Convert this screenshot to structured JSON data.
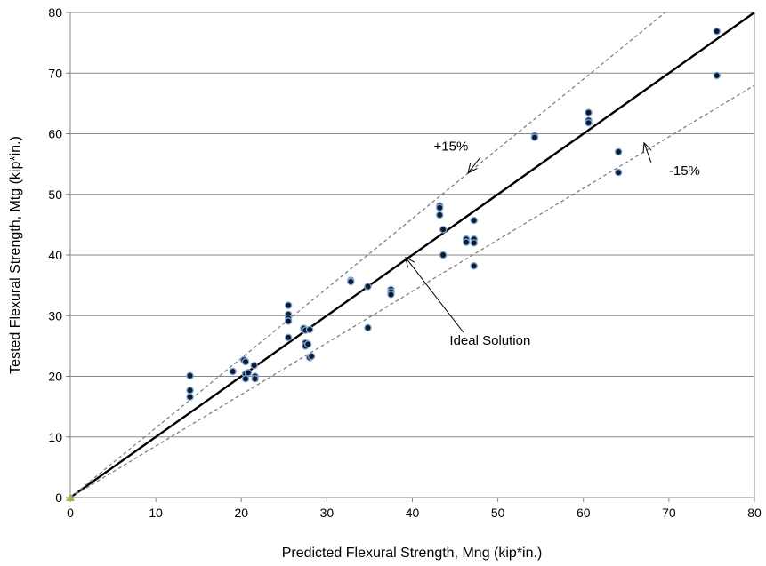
{
  "chart_data": {
    "type": "scatter",
    "xlabel": "Predicted Flexural Strength, Mng  (kip*in.)",
    "ylabel": "Tested Flexural Strength, Mtg  (kip*in.)",
    "xlim": [
      0,
      80
    ],
    "ylim": [
      0,
      80
    ],
    "x_ticks": [
      0,
      10,
      20,
      30,
      40,
      50,
      60,
      70,
      80
    ],
    "y_ticks": [
      0,
      10,
      20,
      30,
      40,
      50,
      60,
      70,
      80
    ],
    "grid": "horizontal",
    "lines": [
      {
        "name": "ideal",
        "slope": 1.0,
        "style": "solid"
      },
      {
        "name": "upper",
        "slope": 1.15,
        "style": "dashed"
      },
      {
        "name": "lower",
        "slope": 0.85,
        "style": "dashed"
      }
    ],
    "annotations": [
      {
        "text": "+15%",
        "points_to": [
          46.5,
          53.5
        ],
        "label_at": [
          42.5,
          57.2
        ]
      },
      {
        "text": "-15%",
        "points_to": [
          67.1,
          58.5
        ],
        "label_at": [
          70.0,
          53.2
        ]
      },
      {
        "text": "Ideal Solution",
        "points_to": [
          39.2,
          39.6
        ],
        "label_at": [
          46.8,
          25.2
        ]
      }
    ],
    "points": [
      {
        "x": 0,
        "y": 0
      },
      {
        "x": 14,
        "y": 20.1
      },
      {
        "x": 14,
        "y": 17.7
      },
      {
        "x": 14,
        "y": 16.6
      },
      {
        "x": 19,
        "y": 20.8
      },
      {
        "x": 20.3,
        "y": 22.7
      },
      {
        "x": 20.5,
        "y": 22.4
      },
      {
        "x": 20.5,
        "y": 20.4
      },
      {
        "x": 20.5,
        "y": 19.6
      },
      {
        "x": 20.8,
        "y": 20.6
      },
      {
        "x": 21.5,
        "y": 21.8
      },
      {
        "x": 21.6,
        "y": 20.0
      },
      {
        "x": 21.6,
        "y": 19.6
      },
      {
        "x": 25.5,
        "y": 31.7
      },
      {
        "x": 25.5,
        "y": 30.2
      },
      {
        "x": 25.5,
        "y": 29.6
      },
      {
        "x": 25.5,
        "y": 29.1
      },
      {
        "x": 25.5,
        "y": 26.4
      },
      {
        "x": 27.3,
        "y": 27.9
      },
      {
        "x": 27.5,
        "y": 27.6
      },
      {
        "x": 27.5,
        "y": 25.5
      },
      {
        "x": 27.5,
        "y": 25.0
      },
      {
        "x": 27.8,
        "y": 25.3
      },
      {
        "x": 28.0,
        "y": 27.7
      },
      {
        "x": 28.0,
        "y": 23.1
      },
      {
        "x": 28.2,
        "y": 23.3
      },
      {
        "x": 32.8,
        "y": 35.8
      },
      {
        "x": 32.8,
        "y": 35.6
      },
      {
        "x": 34.8,
        "y": 34.8
      },
      {
        "x": 34.8,
        "y": 28.0
      },
      {
        "x": 37.5,
        "y": 34.3
      },
      {
        "x": 37.5,
        "y": 33.9
      },
      {
        "x": 37.5,
        "y": 33.5
      },
      {
        "x": 43.2,
        "y": 48.1
      },
      {
        "x": 43.2,
        "y": 47.8
      },
      {
        "x": 43.2,
        "y": 46.6
      },
      {
        "x": 43.6,
        "y": 44.2
      },
      {
        "x": 43.6,
        "y": 40.0
      },
      {
        "x": 46.3,
        "y": 42.6
      },
      {
        "x": 46.3,
        "y": 42.1
      },
      {
        "x": 47.2,
        "y": 45.7
      },
      {
        "x": 47.2,
        "y": 42.6
      },
      {
        "x": 47.2,
        "y": 42.0
      },
      {
        "x": 47.2,
        "y": 38.2
      },
      {
        "x": 54.3,
        "y": 59.7
      },
      {
        "x": 54.3,
        "y": 59.4
      },
      {
        "x": 60.6,
        "y": 63.5
      },
      {
        "x": 60.6,
        "y": 62.2
      },
      {
        "x": 60.6,
        "y": 61.8
      },
      {
        "x": 64.1,
        "y": 57.0
      },
      {
        "x": 64.1,
        "y": 53.6
      },
      {
        "x": 75.6,
        "y": 76.9
      },
      {
        "x": 75.6,
        "y": 69.6
      }
    ]
  },
  "colors": {
    "grid": "#868686",
    "axis": "#868686",
    "ideal_line": "#000000",
    "band_line": "#7f7f7f",
    "point_fill": "#0b1a2e",
    "point_stroke": "#7ea6d6",
    "origin_marker": "#9bbb59"
  }
}
